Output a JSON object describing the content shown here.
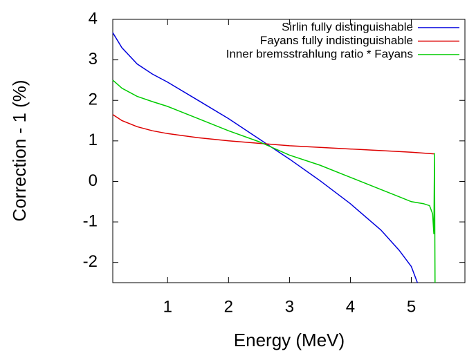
{
  "chart_data": {
    "type": "line",
    "xlabel": "Energy (MeV)",
    "ylabel": "Correction - 1 (%)",
    "xlim": [
      0.1,
      5.88
    ],
    "ylim": [
      -2.5,
      4
    ],
    "xticks": [
      1,
      2,
      3,
      4,
      5
    ],
    "yticks": [
      -2,
      -1,
      0,
      1,
      2,
      3,
      4
    ],
    "legend": "top-right",
    "series": [
      {
        "name": "Sirlin fully distinguishable",
        "color": "#0000dd",
        "x": [
          0.1,
          0.25,
          0.5,
          0.75,
          1,
          1.5,
          2,
          2.5,
          3,
          3.5,
          4,
          4.5,
          4.8,
          5,
          5.1
        ],
        "values": [
          3.67,
          3.3,
          2.9,
          2.65,
          2.45,
          2.0,
          1.55,
          1.05,
          0.55,
          0.02,
          -0.55,
          -1.2,
          -1.7,
          -2.1,
          -2.5
        ]
      },
      {
        "name": "Fayans fully indistinguishable",
        "color": "#dd0000",
        "x": [
          0.1,
          0.25,
          0.5,
          0.75,
          1,
          1.5,
          2,
          2.5,
          3,
          3.5,
          4,
          4.5,
          5,
          5.37
        ],
        "values": [
          1.65,
          1.5,
          1.35,
          1.25,
          1.18,
          1.08,
          1.0,
          0.94,
          0.88,
          0.84,
          0.8,
          0.76,
          0.72,
          0.68
        ]
      },
      {
        "name": "Inner bremsstrahlung ratio * Fayans",
        "color": "#00cc00",
        "x": [
          0.1,
          0.25,
          0.5,
          0.75,
          1,
          1.5,
          2,
          2.5,
          3,
          3.5,
          4,
          4.5,
          4.8,
          5,
          5.2,
          5.3,
          5.35,
          5.37,
          5.38,
          5.39
        ],
        "values": [
          2.5,
          2.3,
          2.1,
          1.97,
          1.85,
          1.55,
          1.25,
          0.98,
          0.65,
          0.4,
          0.1,
          -0.2,
          -0.38,
          -0.5,
          -0.55,
          -0.6,
          -0.8,
          -1.3,
          0.7,
          -2.5
        ]
      }
    ]
  }
}
